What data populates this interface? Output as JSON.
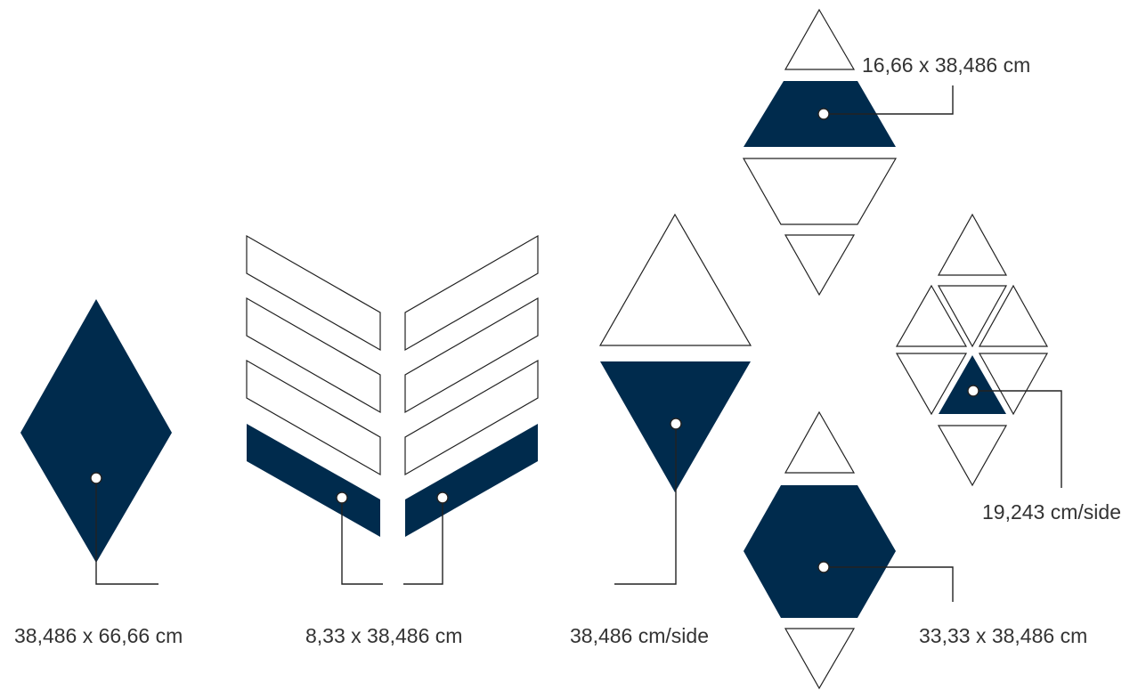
{
  "colors": {
    "fill": "#002b4d",
    "outline": "#222222",
    "text": "#333333",
    "background": "#ffffff"
  },
  "labels": {
    "diamond": "38,486 x 66,66 cm",
    "strip": "8,33 x 38,486 cm",
    "triangle_large": "38,486 cm/side",
    "trapezoid": "16,66 x 38,486 cm",
    "triangle_small": "19,243 cm/side",
    "hexagon": "33,33 x 38,486 cm"
  }
}
